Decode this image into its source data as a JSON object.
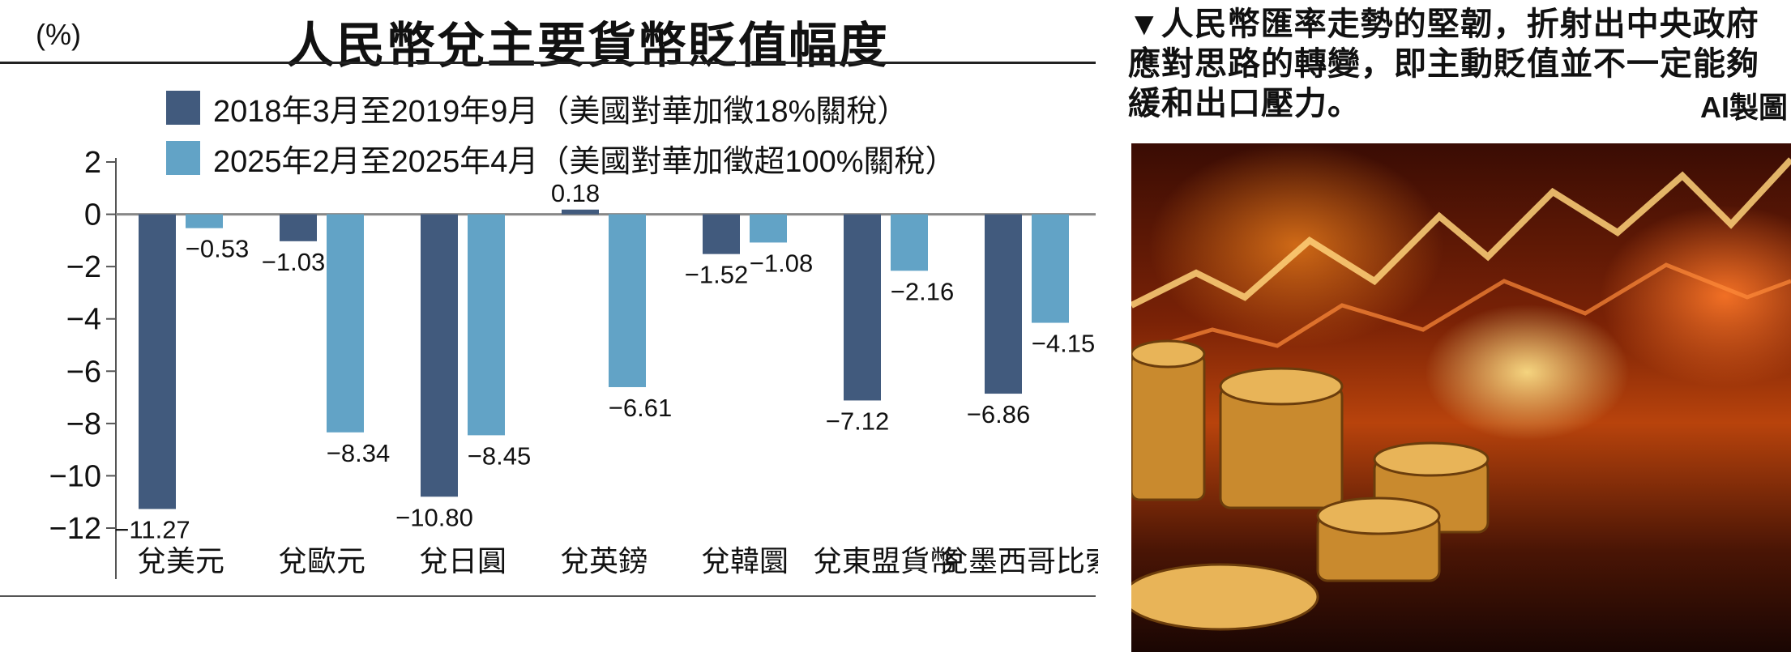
{
  "chart": {
    "unit_label": "(%)",
    "title": "人民幣兌主要貨幣貶值幅度"
  },
  "chart_data": {
    "type": "bar",
    "title": "人民幣兌主要貨幣貶值幅度",
    "ylabel": "(%)",
    "ylim": [
      -12,
      2
    ],
    "yticks": [
      "2",
      "0",
      "−2",
      "−4",
      "−6",
      "−8",
      "−10",
      "−12"
    ],
    "categories": [
      "兌美元",
      "兌歐元",
      "兌日圓",
      "兌英鎊",
      "兌韓圜",
      "兌東盟貨幣",
      "兌墨西哥比索"
    ],
    "series": [
      {
        "name": "2018年3月至2019年9月（美國對華加徵18%關稅）",
        "color": "#415a7d",
        "values": [
          -11.27,
          -1.03,
          -10.8,
          0.18,
          -1.52,
          -7.12,
          -6.86
        ],
        "labels": [
          "−11.27",
          "−1.03",
          "−10.80",
          "0.18",
          "−1.52",
          "−7.12",
          "−6.86"
        ]
      },
      {
        "name": "2025年2月至2025年4月（美國對華加徵超100%關稅）",
        "color": "#62a3c6",
        "values": [
          -0.53,
          -8.34,
          -8.45,
          -6.61,
          -1.08,
          -2.16,
          -4.15
        ],
        "labels": [
          "−0.53",
          "−8.34",
          "−8.45",
          "−6.61",
          "−1.08",
          "−2.16",
          "−4.15"
        ]
      }
    ],
    "grid": false,
    "legend_position": "top"
  },
  "caption": {
    "text": "▼人民幣匯率走勢的堅韌，折射出中央政府應對思路的轉變，即主動貶值並不一定能夠緩和出口壓力。",
    "credit": "AI製圖"
  }
}
